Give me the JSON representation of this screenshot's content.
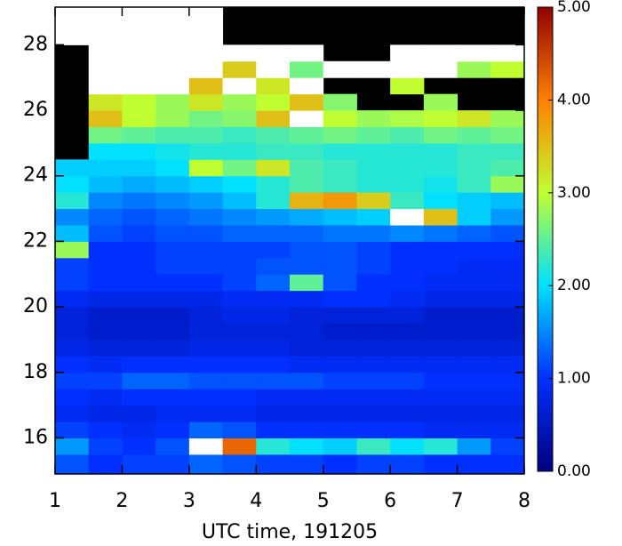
{
  "chart_data": {
    "type": "heatmap",
    "xlabel": "UTC time, 191205",
    "xlim": [
      1,
      8
    ],
    "ylim": [
      14.9,
      29.15
    ],
    "xticks": [
      1,
      2,
      3,
      4,
      5,
      6,
      7,
      8
    ],
    "yticks": [
      16,
      18,
      20,
      22,
      24,
      26,
      28
    ],
    "xbins": [
      1,
      1.5,
      2,
      2.5,
      3,
      3.5,
      4,
      4.5,
      5,
      5.5,
      6,
      6.5,
      7,
      7.5,
      8
    ],
    "ybins": [
      14.9,
      15.5,
      16,
      16.5,
      17,
      17.5,
      18,
      18.5,
      19,
      19.5,
      20,
      20.5,
      21,
      21.5,
      22,
      22.5,
      23,
      23.5,
      24,
      24.5,
      25,
      25.5,
      26,
      26.5,
      27,
      27.5,
      28,
      28.5,
      29.15
    ],
    "z": [
      [
        1.2,
        1.0,
        1.1,
        1.1,
        1.3,
        1.2,
        1.1,
        1.1,
        1.0,
        1.1,
        1.1,
        1.0,
        1.0,
        1.0
      ],
      [
        1.6,
        1.1,
        1.0,
        1.2,
        6,
        4.2,
        2.2,
        2.0,
        1.9,
        2.3,
        2.0,
        2.2,
        1.6,
        1.1
      ],
      [
        1.1,
        1.0,
        0.9,
        1.0,
        1.3,
        1.2,
        1.0,
        1.0,
        1.0,
        1.0,
        1.0,
        0.9,
        0.9,
        0.9
      ],
      [
        0.9,
        0.8,
        0.8,
        0.9,
        0.9,
        0.9,
        0.8,
        0.8,
        0.8,
        0.8,
        0.8,
        0.8,
        0.8,
        0.8
      ],
      [
        1.0,
        0.9,
        1.0,
        1.0,
        1.0,
        1.0,
        0.9,
        0.9,
        0.9,
        0.9,
        0.9,
        0.9,
        0.9,
        0.9
      ],
      [
        1.1,
        1.1,
        1.3,
        1.3,
        1.2,
        1.2,
        1.2,
        1.2,
        1.1,
        1.1,
        1.1,
        1.0,
        1.0,
        1.0
      ],
      [
        1.0,
        0.9,
        1.0,
        1.0,
        1.0,
        1.0,
        1.0,
        0.9,
        0.9,
        0.9,
        0.9,
        0.9,
        0.9,
        0.9
      ],
      [
        0.8,
        0.7,
        0.7,
        0.7,
        0.8,
        0.8,
        0.8,
        0.7,
        0.7,
        0.7,
        0.7,
        0.7,
        0.7,
        0.7
      ],
      [
        0.7,
        0.6,
        0.6,
        0.6,
        0.7,
        0.7,
        0.7,
        0.7,
        0.6,
        0.6,
        0.6,
        0.6,
        0.6,
        0.6
      ],
      [
        0.7,
        0.6,
        0.6,
        0.6,
        0.7,
        0.8,
        0.8,
        0.7,
        0.7,
        0.7,
        0.7,
        0.6,
        0.6,
        0.6
      ],
      [
        0.9,
        0.8,
        0.8,
        0.8,
        0.8,
        0.9,
        0.9,
        0.9,
        1.0,
        1.0,
        0.9,
        0.8,
        0.8,
        0.8
      ],
      [
        1.1,
        1.0,
        1.0,
        1.0,
        1.0,
        1.1,
        1.3,
        2.5,
        1.2,
        1.0,
        1.0,
        0.9,
        0.9,
        0.9
      ],
      [
        1.1,
        1.0,
        1.0,
        1.1,
        1.1,
        1.1,
        1.2,
        1.2,
        1.2,
        1.1,
        1.0,
        1.0,
        0.9,
        0.9
      ],
      [
        2.8,
        1.0,
        1.0,
        1.1,
        1.1,
        1.1,
        1.1,
        1.2,
        1.2,
        1.1,
        1.0,
        1.0,
        1.0,
        1.0
      ],
      [
        1.8,
        1.2,
        1.1,
        1.2,
        1.2,
        1.3,
        1.3,
        1.3,
        1.4,
        1.4,
        1.5,
        1.4,
        1.3,
        1.2
      ],
      [
        1.5,
        1.3,
        1.2,
        1.3,
        1.4,
        1.5,
        1.6,
        1.7,
        1.8,
        1.9,
        6,
        3.5,
        1.9,
        1.6
      ],
      [
        2.2,
        1.5,
        1.4,
        1.5,
        1.6,
        1.8,
        2.2,
        3.6,
        3.8,
        3.4,
        2.3,
        2.0,
        1.9,
        1.8
      ],
      [
        2.0,
        1.8,
        1.7,
        1.8,
        1.9,
        2.0,
        2.2,
        2.4,
        2.3,
        2.2,
        2.2,
        2.1,
        2.3,
        2.8
      ],
      [
        1.9,
        1.9,
        1.9,
        2.0,
        3.0,
        2.6,
        3.2,
        2.4,
        2.3,
        2.2,
        2.2,
        2.2,
        2.3,
        2.4
      ],
      [
        null,
        2.0,
        2.0,
        2.1,
        2.2,
        2.2,
        2.3,
        2.3,
        2.2,
        2.2,
        2.2,
        2.2,
        2.3,
        2.3
      ],
      [
        null,
        2.6,
        2.5,
        2.4,
        2.4,
        2.3,
        2.4,
        2.5,
        2.6,
        2.5,
        2.4,
        2.6,
        2.5,
        2.6
      ],
      [
        null,
        3.5,
        3.0,
        2.8,
        2.6,
        2.7,
        3.5,
        6,
        3.0,
        2.8,
        2.9,
        3.0,
        3.2,
        2.8
      ],
      [
        null,
        3.2,
        3.0,
        2.8,
        3.2,
        2.8,
        3.0,
        3.5,
        2.7,
        null,
        null,
        2.8,
        null,
        null
      ],
      [
        null,
        6,
        6,
        6,
        3.5,
        6,
        3.2,
        6,
        null,
        null,
        3.0,
        null,
        null,
        null
      ],
      [
        null,
        6,
        6,
        6,
        6,
        3.4,
        6,
        2.6,
        6,
        6,
        6,
        6,
        2.8,
        3.0
      ],
      [
        null,
        6,
        6,
        6,
        6,
        6,
        6,
        6,
        null,
        null,
        6,
        6,
        6,
        6
      ],
      [
        6,
        6,
        6,
        6,
        6,
        null,
        null,
        null,
        null,
        null,
        null,
        null,
        null,
        null
      ],
      [
        6,
        6,
        6,
        6,
        6,
        null,
        null,
        null,
        null,
        null,
        null,
        null,
        null,
        null
      ]
    ],
    "colormap": [
      "#000080",
      "#0030ff",
      "#00e0ff",
      "#c0ff30",
      "#ff8000",
      "#900000"
    ],
    "clim": [
      0,
      5
    ],
    "over_color": "#ffffff",
    "missing_color": "#000000",
    "cticks": [
      {
        "value": 0,
        "label": "0.00"
      },
      {
        "value": 1,
        "label": "1.00"
      },
      {
        "value": 2,
        "label": "2.00"
      },
      {
        "value": 3,
        "label": "3.00"
      },
      {
        "value": 4,
        "label": "4.00"
      },
      {
        "value": 5,
        "label": "5.00"
      }
    ]
  }
}
